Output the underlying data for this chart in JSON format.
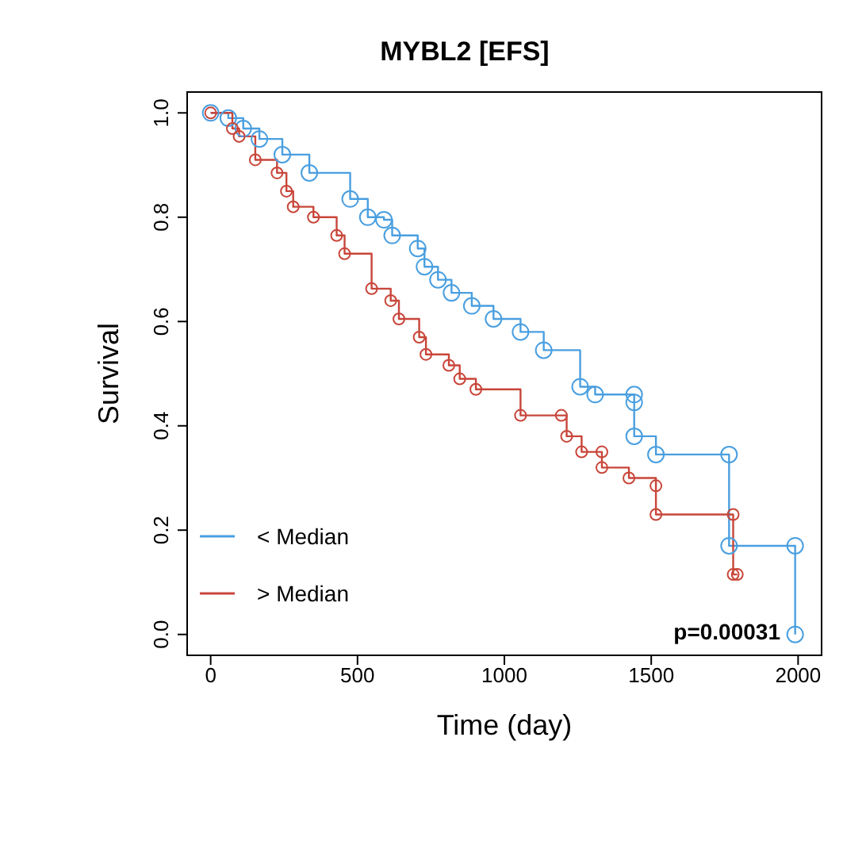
{
  "chart_data": {
    "type": "step",
    "title": "MYBL2 [EFS]",
    "xlabel": "Time (day)",
    "ylabel": "Survival",
    "xlim": [
      -80,
      2080
    ],
    "ylim": [
      -0.04,
      1.04
    ],
    "xticks": [
      0,
      500,
      1000,
      1500,
      2000
    ],
    "yticks": [
      {
        "value": 0,
        "label": "0.0"
      },
      0.2,
      0.4,
      0.6,
      0.8,
      {
        "value": 1,
        "label": "1.0"
      }
    ],
    "marker": "circle",
    "legend": "bottom left",
    "annotations": [
      "p=0.00031"
    ],
    "series": [
      {
        "name": "< Median",
        "color": "#4a9fe0",
        "x": [
          0,
          60,
          111,
          166,
          244,
          336,
          475,
          535,
          590,
          618,
          705,
          728,
          774,
          820,
          889,
          963,
          1055,
          1134,
          1258,
          1309,
          1442,
          1442,
          1442,
          1516,
          1765,
          1765,
          1990,
          1990
        ],
        "values": [
          1,
          0.99,
          0.97,
          0.95,
          0.92,
          0.885,
          0.835,
          0.8,
          0.795,
          0.765,
          0.74,
          0.705,
          0.68,
          0.655,
          0.63,
          0.605,
          0.58,
          0.545,
          0.475,
          0.46,
          0.46,
          0.445,
          0.38,
          0.345,
          0.345,
          0.17,
          0.17,
          0
        ]
      },
      {
        "name": "> Median",
        "color": "#c8463a",
        "x": [
          0,
          74,
          97,
          152,
          226,
          258,
          281,
          350,
          429,
          456,
          548,
          613,
          641,
          710,
          733,
          811,
          848,
          903,
          1055,
          1194,
          1212,
          1263,
          1332,
          1332,
          1424,
          1516,
          1516,
          1779,
          1779,
          1793
        ],
        "values": [
          1,
          0.97,
          0.955,
          0.91,
          0.885,
          0.85,
          0.82,
          0.8,
          0.765,
          0.73,
          0.663,
          0.64,
          0.605,
          0.57,
          0.537,
          0.516,
          0.49,
          0.47,
          0.42,
          0.42,
          0.38,
          0.35,
          0.35,
          0.32,
          0.3,
          0.285,
          0.23,
          0.23,
          0.115,
          0.115
        ]
      }
    ]
  }
}
